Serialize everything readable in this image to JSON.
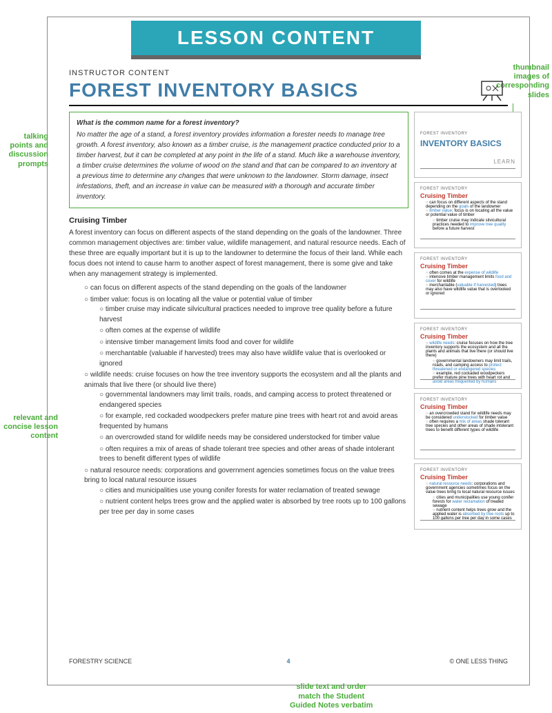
{
  "banner": "LESSON CONTENT",
  "kicker": "INSTRUCTOR CONTENT",
  "title": "FOREST INVENTORY BASICS",
  "callouts": {
    "topright": "thumbnail\nimages of\ncorresponding\nslides",
    "topleft": "talking\npoints and\ndiscussion\nprompts",
    "midleft": "relevant and\nconcise lesson\ncontent",
    "bottom": "slide text and order\nmatch the Student\nGuided Notes verbatim"
  },
  "greenbox": {
    "q": "What is the common name for a forest inventory?",
    "body": "No matter the age of a stand, a forest inventory provides information a forester needs to manage tree growth. A forest inventory, also known as a timber cruise, is the management practice conducted prior to a timber harvest, but it can be completed at any point in the life of a stand. Much like a warehouse inventory, a timber cruise determines the volume of wood on the stand and that can be compared to an inventory at a previous time to determine any changes that were unknown to the landowner. Storm damage, insect infestations, theft, and an increase in value can be measured with a thorough and accurate timber inventory."
  },
  "section_h": "Cruising Timber",
  "para1": "A forest inventory can focus on different aspects of the stand depending on the goals of the landowner. Three common management objectives are: timber value, wildlife management, and natural resource needs. Each of these three are equally important but it is up to the landowner to determine the focus of their land. While each focus does not intend to cause harm to another aspect of forest management, there is some give and take when any management strategy is implemented.",
  "bullets": [
    "can focus on different aspects of the stand depending on the goals of the landowner",
    "timber value: focus is on locating all the value or potential value of timber",
    {
      "sub": [
        "timber cruise may indicate silvicultural practices needed to improve tree quality before a future harvest",
        "often comes at the expense of wildlife",
        "intensive timber management limits food and cover for wildlife",
        "merchantable (valuable if harvested) trees may also have wildlife value that is overlooked or ignored"
      ]
    },
    "wildlife needs: cruise focuses on how the tree inventory supports the ecosystem and all the plants and animals that live there (or should live there)",
    {
      "sub": [
        "governmental landowners may limit trails, roads, and camping access to protect threatened or endangered species",
        "for example, red cockaded woodpeckers prefer mature pine trees with heart rot and avoid areas frequented by humans",
        "an overcrowded stand for wildlife needs may be considered understocked for timber value",
        "often requires a mix of areas of shade tolerant tree species and other areas of shade intolerant trees to benefit different types of wildlife"
      ]
    },
    "natural resource needs: corporations and government agencies sometimes focus on the value trees bring to local natural resource issues",
    {
      "sub": [
        "cities and municipalities use young conifer forests for water reclamation of treated sewage",
        "nutrient content helps trees grow and the applied water is absorbed by tree roots up to 100 gallons per tree per day in some cases"
      ]
    }
  ],
  "thumbs": [
    {
      "type": "title",
      "crumb": "FOREST INVENTORY",
      "title": "INVENTORY BASICS",
      "learn": "LEARN"
    },
    {
      "type": "content",
      "crumb": "FOREST INVENTORY",
      "title": "Cruising Timber",
      "items": [
        [
          "can focus on different aspects of the stand depending on the ",
          "goals",
          " of the landowner"
        ],
        [
          "",
          "timber value",
          ": focus is on locating all the value or potential value of timber"
        ],
        {
          "sub": [
            [
              "timber cruise may indicate silvicultural practices needed to ",
              "improve tree quality",
              " before a future harvest"
            ]
          ]
        }
      ]
    },
    {
      "type": "content",
      "crumb": "FOREST INVENTORY",
      "title": "Cruising Timber",
      "items": [
        [
          "often comes at the ",
          "expense of wildlife",
          ""
        ],
        [
          "intensive timber management limits ",
          "food and cover",
          " for wildlife"
        ],
        [
          "merchantable (",
          "valuable if harvested",
          ") trees may also have wildlife value that is overlooked or ignored"
        ]
      ]
    },
    {
      "type": "content",
      "crumb": "FOREST INVENTORY",
      "title": "Cruising Timber",
      "items": [
        [
          "",
          "wildlife needs",
          ": cruise focuses on how the tree inventory supports the ecosystem and all the plants and animals that live there (or should live there)"
        ],
        {
          "sub": [
            [
              "governmental landowners may limit trails, roads, and camping access to ",
              "protect threatened or endangered species",
              ""
            ],
            [
              "example, red cockaded woodpeckers prefer mature pine trees with heart rot and ",
              "avoid areas frequented by humans",
              ""
            ]
          ]
        }
      ]
    },
    {
      "type": "content",
      "crumb": "FOREST INVENTORY",
      "title": "Cruising Timber",
      "items": [
        [
          "an overcrowded stand for wildlife needs may be considered ",
          "understocked",
          " for timber value"
        ],
        [
          "often requires a ",
          "mix of areas",
          " shade tolerant tree species and other areas of shade intolerant trees to benefit different types of wildlife"
        ]
      ]
    },
    {
      "type": "content",
      "crumb": "FOREST INVENTORY",
      "title": "Cruising Timber",
      "items": [
        [
          "",
          "natural resource needs",
          ": corporations and government agencies sometimes focus on the value trees bring to local natural resource issues"
        ],
        {
          "sub": [
            [
              "cities and municipalities use young conifer forests for ",
              "water reclamation",
              " of treated sewage"
            ],
            [
              "nutrient content helps trees grow and the applied water is ",
              "absorbed by tree roots",
              " up to 100 gallons per tree per day in some cases"
            ]
          ]
        }
      ]
    }
  ],
  "footer": {
    "left": "FORESTRY SCIENCE",
    "mid": "4",
    "right": "© ONE LESS THING"
  }
}
